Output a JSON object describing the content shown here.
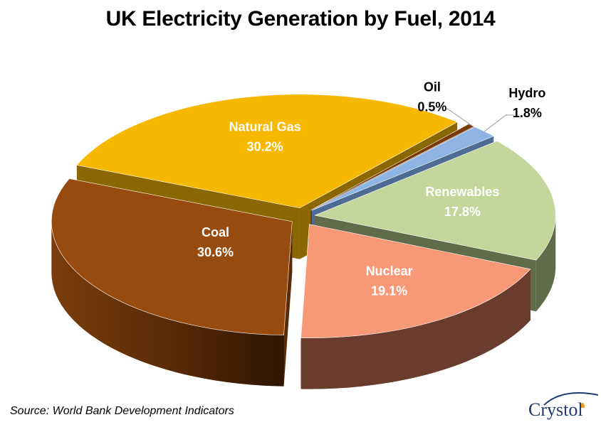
{
  "chart_data": {
    "type": "pie",
    "title": "UK Electricity Generation by Fuel, 2014",
    "slices": [
      {
        "label": "Coal",
        "value": 30.6,
        "value_label": "30.6%",
        "color": "#974b0f",
        "side": "#5a2b06",
        "label_color": "#ffffff"
      },
      {
        "label": "Natural Gas",
        "value": 30.2,
        "value_label": "30.2%",
        "color": "#f6b800",
        "side": "#8a6700",
        "label_color": "#ffffff"
      },
      {
        "label": "Oil",
        "value": 0.5,
        "value_label": "0.5%",
        "color": "#7a3a0a",
        "side": "#3c1c05",
        "label_color": "#000000"
      },
      {
        "label": "Hydro",
        "value": 1.8,
        "value_label": "1.8%",
        "color": "#8eb4e3",
        "side": "#4d6b93",
        "label_color": "#000000"
      },
      {
        "label": "Renewables",
        "value": 17.8,
        "value_label": "17.8%",
        "color": "#c3d69b",
        "side": "#606b4a",
        "label_color": "#ffffff"
      },
      {
        "label": "Nuclear",
        "value": 19.1,
        "value_label": "19.1%",
        "color": "#f79876",
        "side": "#6a3c2e",
        "label_color": "#ffffff"
      }
    ],
    "legend": "none"
  },
  "source": "Source: World Bank Development Indicators",
  "brand": {
    "name": "Crystol"
  }
}
